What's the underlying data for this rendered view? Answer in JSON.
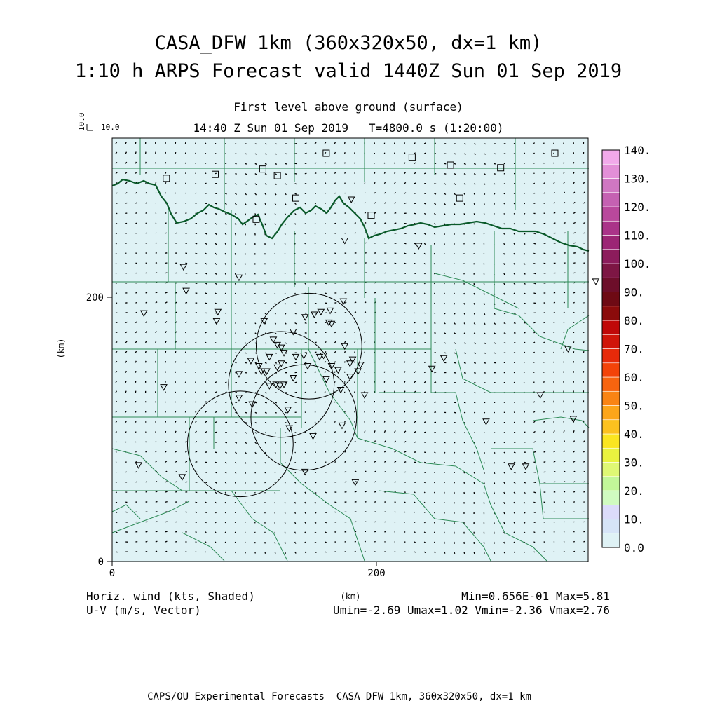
{
  "titles": {
    "line1": "CASA_DFW 1km (360x320x50, dx=1 km)",
    "line2": "1:10 h ARPS Forecast valid 1440Z Sun 01 Sep 2019",
    "subtitle1": "First level above ground (surface)",
    "subtitle2": "14:40 Z Sun 01 Sep 2019   T=4800.0 s (1:20:00)"
  },
  "reference_vector": {
    "vertical_label": "10.0",
    "horizontal_label": "10.0"
  },
  "footer": {
    "left1": "Horiz. wind (kts, Shaded)",
    "left2": "U-V (m/s, Vector)",
    "right1": "Min=0.656E-01 Max=5.81",
    "right2": "Umin=-2.69 Umax=1.02 Vmin=-2.36 Vmax=2.76",
    "credit": "CAPS/OU Experimental Forecasts  CASA DFW 1km, 360x320x50, dx=1 km"
  },
  "colors": {
    "field_fill": "#dff2f5",
    "county_lines": "#2e8b57",
    "coastline": "#0a5a2a",
    "arrows": "#000000"
  },
  "chart_data": {
    "type": "heatmap",
    "xlabel": "(km)",
    "ylabel": "(km)",
    "xlim": [
      0,
      360
    ],
    "ylim": [
      0,
      320
    ],
    "x_ticks": [
      0,
      200
    ],
    "y_ticks": [
      0,
      200
    ],
    "field": "Horizontal wind speed (kts), shaded",
    "field_min": 0.0656,
    "field_max": 5.81,
    "colorbar": {
      "levels": [
        0,
        5,
        10,
        15,
        20,
        25,
        30,
        35,
        40,
        45,
        50,
        55,
        60,
        65,
        70,
        75,
        80,
        85,
        90,
        95,
        100,
        105,
        110,
        115,
        120,
        125,
        130,
        135,
        140
      ],
      "labels": [
        "0.0",
        "10.",
        "20.",
        "30.",
        "40.",
        "50.",
        "60.",
        "70.",
        "80.",
        "90.",
        "100.",
        "110.",
        "120.",
        "130.",
        "140."
      ],
      "colors": [
        "#dff2f5",
        "#d6e4f7",
        "#dcdcfa",
        "#d0fbc0",
        "#c2f799",
        "#dff874",
        "#e9f33f",
        "#fbe521",
        "#fcc11f",
        "#fca51a",
        "#f98414",
        "#f7640f",
        "#f34309",
        "#e62a0a",
        "#d01509",
        "#c00808",
        "#8b0b0b",
        "#6e0a14",
        "#6d0e2a",
        "#7d1644",
        "#8c1c5c",
        "#9c2575",
        "#aa3389",
        "#b9489c",
        "#c561b2",
        "#d077c2",
        "#e38fd7",
        "#f2a9ea"
      ]
    },
    "radar_rings": [
      {
        "center_x": 149,
        "center_y": 163,
        "radius": 40
      },
      {
        "center_x": 128,
        "center_y": 134,
        "radius": 40
      },
      {
        "center_x": 145,
        "center_y": 109,
        "radius": 40
      },
      {
        "center_x": 97,
        "center_y": 89,
        "radius": 40
      }
    ],
    "stations_square": [
      [
        41,
        290
      ],
      [
        78,
        293
      ],
      [
        114,
        297
      ],
      [
        125,
        292
      ],
      [
        162,
        309
      ],
      [
        227,
        306
      ],
      [
        256,
        300
      ],
      [
        294,
        298
      ],
      [
        335,
        309
      ],
      [
        263,
        275
      ],
      [
        139,
        275
      ],
      [
        196,
        262
      ],
      [
        109,
        259
      ]
    ],
    "stations_triangle": [
      [
        181,
        274
      ],
      [
        176,
        243
      ],
      [
        232,
        239
      ],
      [
        54,
        223
      ],
      [
        96,
        215
      ],
      [
        175,
        197
      ],
      [
        24,
        188
      ],
      [
        80,
        189
      ],
      [
        79,
        182
      ],
      [
        115,
        182
      ],
      [
        158,
        189
      ],
      [
        165,
        190
      ],
      [
        146,
        185
      ],
      [
        153,
        187
      ],
      [
        137,
        174
      ],
      [
        164,
        181
      ],
      [
        166,
        180
      ],
      [
        122,
        168
      ],
      [
        125,
        164
      ],
      [
        128,
        162
      ],
      [
        130,
        158
      ],
      [
        119,
        155
      ],
      [
        139,
        155
      ],
      [
        145,
        156
      ],
      [
        157,
        155
      ],
      [
        160,
        156
      ],
      [
        176,
        163
      ],
      [
        182,
        153
      ],
      [
        188,
        149
      ],
      [
        180,
        150
      ],
      [
        166,
        148
      ],
      [
        148,
        148
      ],
      [
        171,
        145
      ],
      [
        186,
        144
      ],
      [
        105,
        152
      ],
      [
        111,
        148
      ],
      [
        113,
        144
      ],
      [
        125,
        147
      ],
      [
        117,
        144
      ],
      [
        128,
        150
      ],
      [
        162,
        138
      ],
      [
        137,
        139
      ],
      [
        124,
        134
      ],
      [
        127,
        133
      ],
      [
        130,
        134
      ],
      [
        96,
        142
      ],
      [
        119,
        133
      ],
      [
        173,
        130
      ],
      [
        180,
        140
      ],
      [
        191,
        126
      ],
      [
        251,
        154
      ],
      [
        242,
        146
      ],
      [
        96,
        124
      ],
      [
        106,
        119
      ],
      [
        133,
        115
      ],
      [
        39,
        132
      ],
      [
        134,
        101
      ],
      [
        174,
        103
      ],
      [
        152,
        95
      ],
      [
        283,
        106
      ],
      [
        349,
        108
      ],
      [
        324,
        126
      ],
      [
        302,
        72
      ],
      [
        313,
        72
      ],
      [
        20,
        73
      ],
      [
        53,
        64
      ],
      [
        146,
        68
      ],
      [
        184,
        60
      ],
      [
        56,
        205
      ],
      [
        366,
        212
      ],
      [
        345,
        161
      ]
    ]
  }
}
